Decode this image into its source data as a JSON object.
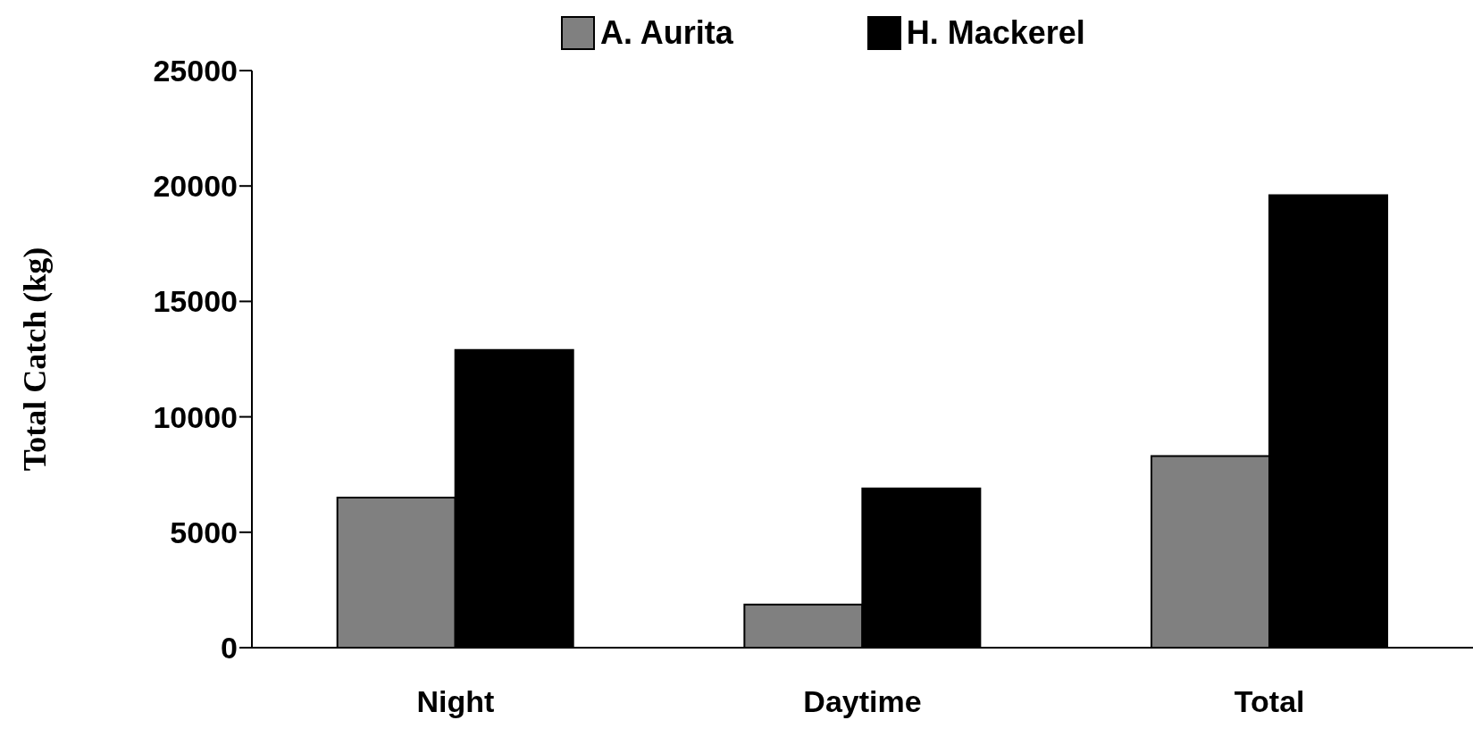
{
  "chart_data": {
    "type": "bar",
    "ylabel": "Total Catch (kg)",
    "categories": [
      "Night",
      "Daytime",
      "Total"
    ],
    "series": [
      {
        "name": "A. Aurita",
        "color": "#808080",
        "values": [
          6500,
          1870,
          8300
        ]
      },
      {
        "name": "H. Mackerel",
        "color": "#000000",
        "values": [
          12900,
          6900,
          19600
        ]
      }
    ],
    "ylim": [
      0,
      25000
    ],
    "yticks": [
      0,
      5000,
      10000,
      15000,
      20000,
      25000
    ],
    "grid": false,
    "legend": "top"
  }
}
